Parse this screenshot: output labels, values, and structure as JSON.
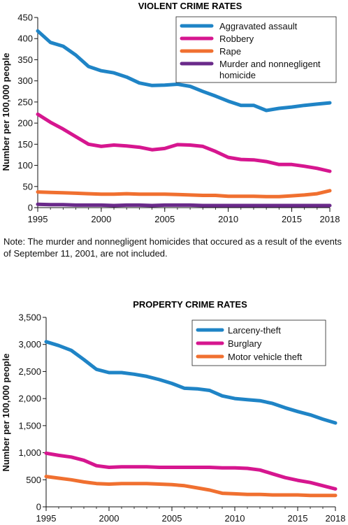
{
  "note": "Note: The murder and nonnegligent homicides that occured as a result of the events of September 11, 2001, are not included.",
  "chart_data": [
    {
      "type": "line",
      "title": "VIOLENT CRIME RATES",
      "ylabel": "Number per 100,000 people",
      "xlabel": "",
      "ylim": [
        0,
        450
      ],
      "yticks": [
        "0",
        "50",
        "100",
        "150",
        "200",
        "250",
        "300",
        "350",
        "400",
        "450"
      ],
      "ytick_values": [
        0,
        50,
        100,
        150,
        200,
        250,
        300,
        350,
        400,
        450
      ],
      "xticks": [
        "1995",
        "2000",
        "2005",
        "2010",
        "2015",
        "2018"
      ],
      "xtick_values": [
        1995,
        2000,
        2005,
        2010,
        2015,
        2018
      ],
      "x": [
        1995,
        1996,
        1997,
        1998,
        1999,
        2000,
        2001,
        2002,
        2003,
        2004,
        2005,
        2006,
        2007,
        2008,
        2009,
        2010,
        2011,
        2012,
        2013,
        2014,
        2015,
        2016,
        2017,
        2018
      ],
      "legend_position": "top-right",
      "series": [
        {
          "name": "Aggravated assault",
          "color": "#1f84c6",
          "values": [
            418,
            391,
            382,
            361,
            334,
            324,
            319,
            309,
            295,
            289,
            290,
            292,
            287,
            275,
            264,
            252,
            242,
            242,
            230,
            235,
            238,
            242,
            245,
            248
          ]
        },
        {
          "name": "Robbery",
          "color": "#d6168f",
          "values": [
            221,
            202,
            186,
            168,
            150,
            145,
            148,
            146,
            143,
            137,
            140,
            149,
            148,
            145,
            133,
            119,
            114,
            113,
            109,
            102,
            102,
            98,
            93,
            86
          ]
        },
        {
          "name": "Rape",
          "color": "#f07030",
          "values": [
            37,
            36,
            35,
            34,
            33,
            32,
            32,
            33,
            32,
            32,
            32,
            31,
            30,
            29,
            29,
            27,
            27,
            27,
            26,
            26,
            28,
            30,
            33,
            40
          ]
        },
        {
          "name": "Murder and nonnegligent homicide",
          "color": "#6a2a8a",
          "values": [
            8,
            7,
            7,
            6,
            6,
            6,
            5,
            6,
            6,
            5,
            6,
            6,
            6,
            5,
            5,
            5,
            5,
            5,
            5,
            5,
            5,
            5,
            5,
            5
          ]
        }
      ]
    },
    {
      "type": "line",
      "title": "PROPERTY CRIME RATES",
      "ylabel": "Number per 100,000 people",
      "xlabel": "",
      "ylim": [
        0,
        3500
      ],
      "yticks": [
        "0",
        "500",
        "1,000",
        "1,500",
        "2,000",
        "2,500",
        "3,000",
        "3,500"
      ],
      "ytick_values": [
        0,
        500,
        1000,
        1500,
        2000,
        2500,
        3000,
        3500
      ],
      "xticks": [
        "1995",
        "2000",
        "2005",
        "2010",
        "2015",
        "2018"
      ],
      "xtick_values": [
        1995,
        2000,
        2005,
        2010,
        2015,
        2018
      ],
      "x": [
        1995,
        1996,
        1997,
        1998,
        1999,
        2000,
        2001,
        2002,
        2003,
        2004,
        2005,
        2006,
        2007,
        2008,
        2009,
        2010,
        2011,
        2012,
        2013,
        2014,
        2015,
        2016,
        2017,
        2018
      ],
      "legend_position": "top-right",
      "series": [
        {
          "name": "Larceny-theft",
          "color": "#1f84c6",
          "values": [
            3050,
            2980,
            2890,
            2720,
            2540,
            2480,
            2480,
            2450,
            2410,
            2350,
            2280,
            2190,
            2180,
            2150,
            2050,
            2000,
            1980,
            1960,
            1910,
            1830,
            1760,
            1700,
            1620,
            1550
          ]
        },
        {
          "name": "Burglary",
          "color": "#d6168f",
          "values": [
            990,
            950,
            920,
            860,
            760,
            730,
            740,
            740,
            740,
            730,
            730,
            730,
            730,
            730,
            720,
            720,
            710,
            680,
            610,
            540,
            490,
            450,
            390,
            330
          ]
        },
        {
          "name": "Motor vehicle theft",
          "color": "#f07030",
          "values": [
            560,
            530,
            500,
            460,
            430,
            420,
            430,
            430,
            430,
            420,
            410,
            390,
            350,
            310,
            250,
            240,
            230,
            230,
            220,
            220,
            220,
            210,
            210,
            210
          ]
        }
      ]
    }
  ]
}
